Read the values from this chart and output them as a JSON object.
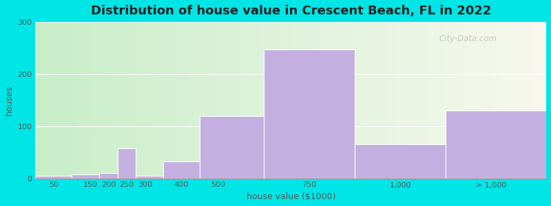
{
  "title": "Distribution of house value in Crescent Beach, FL in 2022",
  "xlabel": "house value ($1000)",
  "ylabel": "houses",
  "bar_labels": [
    "50",
    "150",
    "200",
    "250",
    "300",
    "400",
    "500",
    "750",
    "1,000",
    "> 1,000"
  ],
  "bar_heights": [
    5,
    8,
    10,
    58,
    5,
    32,
    120,
    248,
    65,
    130
  ],
  "bar_color": "#c4b0e0",
  "bar_edgecolor": "#ffffff",
  "bg_outer": "#00e5e5",
  "grad_left": "#c8eec8",
  "grad_right": "#f8f8ee",
  "ylim": [
    0,
    300
  ],
  "yticks": [
    0,
    100,
    200,
    300
  ],
  "watermark": "City-Data.com",
  "bin_edges": [
    0,
    100,
    175,
    225,
    275,
    350,
    450,
    625,
    875,
    1125,
    1400
  ],
  "xlim": [
    0,
    1400
  ]
}
